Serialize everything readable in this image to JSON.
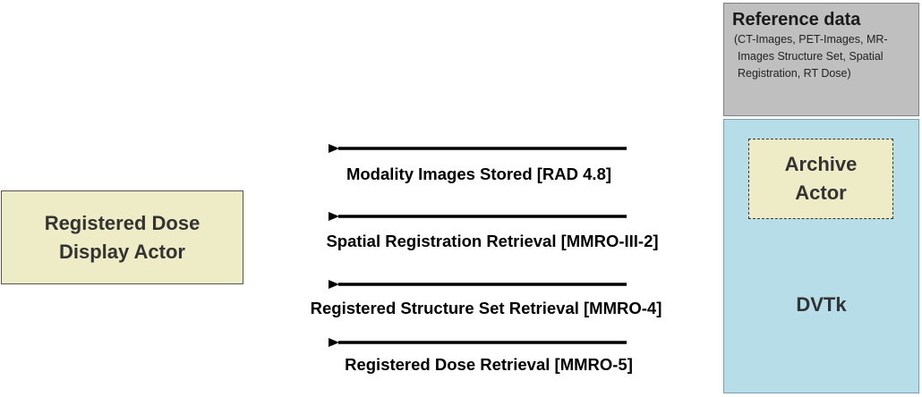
{
  "reference": {
    "title": "Reference data",
    "description": "(CT-Images, PET-Images, MR-Images Structure Set, Spatial Registration, RT Dose)"
  },
  "archive_actor": {
    "label": "Archive\nActor"
  },
  "dvtk": {
    "label": "DVTk"
  },
  "display_actor": {
    "label": "Registered Dose\nDisplay Actor"
  },
  "messages": [
    "Modality Images Stored [RAD 4.8]",
    "Spatial Registration Retrieval [MMRO-III-2]",
    "Registered Structure Set Retrieval [MMRO-4]",
    "Registered Dose Retrieval [MMRO-5]"
  ],
  "colors": {
    "reference_fill": "#bfbfbf",
    "dvtk_fill": "#b7dde8",
    "actor_fill": "#eeecc7",
    "arrow": "#000000"
  }
}
